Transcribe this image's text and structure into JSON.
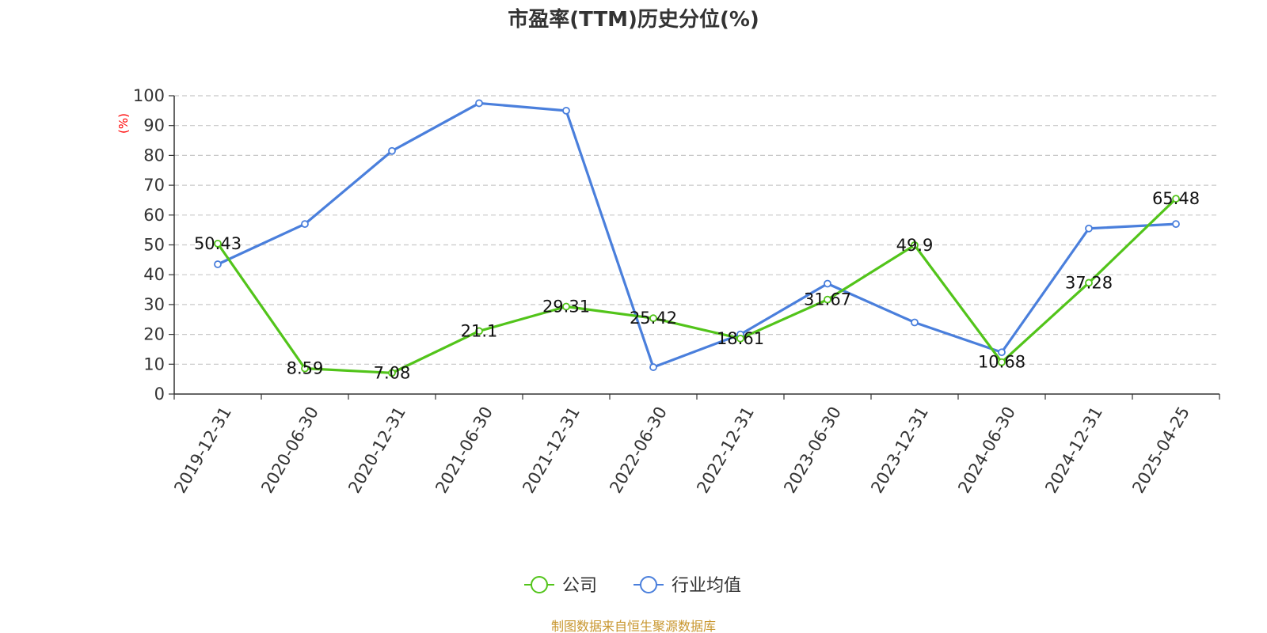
{
  "chart_data": {
    "type": "line",
    "title": "市盈率(TTM)历史分位(%)",
    "ylabel": "(%)",
    "xlabel": "",
    "ylim": [
      0,
      100
    ],
    "yticks": [
      0,
      10,
      20,
      30,
      40,
      50,
      60,
      70,
      80,
      90,
      100
    ],
    "grid": true,
    "legend_position": "bottom-center",
    "categories": [
      "2019-12-31",
      "2020-06-30",
      "2020-12-31",
      "2021-06-30",
      "2021-12-31",
      "2022-06-30",
      "2022-12-31",
      "2023-06-30",
      "2023-12-31",
      "2024-06-30",
      "2024-12-31",
      "2025-04-25"
    ],
    "series": [
      {
        "name": "公司",
        "color": "#52c41a",
        "values": [
          50.43,
          8.59,
          7.08,
          21.1,
          29.31,
          25.42,
          18.61,
          31.67,
          49.9,
          10.68,
          37.28,
          65.48
        ],
        "labels": [
          "50.43",
          "8.59",
          "7.08",
          "21.1",
          "29.31",
          "25.42",
          "18.61",
          "31.67",
          "49.9",
          "10.68",
          "37.28",
          "65.48"
        ]
      },
      {
        "name": "行业均值",
        "color": "#4a7fdc",
        "values": [
          43.5,
          57,
          81.5,
          97.5,
          95,
          9,
          20,
          37,
          24,
          14,
          55.5,
          57
        ]
      }
    ]
  },
  "footer": {
    "source": "制图数据来自恒生聚源数据库"
  }
}
